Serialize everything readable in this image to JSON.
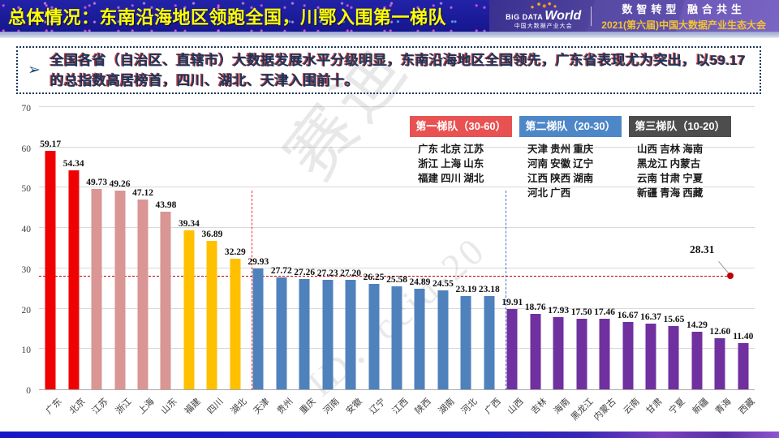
{
  "header": {
    "title": "总体情况：东南沿海地区领跑全国，川鄂入围第一梯队",
    "logo_big": "BiG DATA",
    "logo_world": "World",
    "logo_sub": "中国大数据产业大会",
    "slogan": "数智转型 融合共生",
    "conference": "2021(第六届)中国大数据产业生态大会"
  },
  "callout": {
    "bullet": "➢",
    "text": "全国各省（自治区、直辖市）大数据发展水平分级明显，东南沿海地区全国领先，广东省表现尤为突出，以59.17的总指数高居榜首，四川、湖北、天津入围前十。"
  },
  "legend": [
    {
      "label": "第一梯队（30-60）",
      "color": "#E95252",
      "text_color": "#ffffff",
      "provinces": [
        "广东 北京 江苏",
        "浙江 上海 山东",
        "福建 四川 湖北"
      ]
    },
    {
      "label": "第二梯队（20-30）",
      "color": "#4E87C8",
      "text_color": "#ffffff",
      "provinces": [
        "天津 贵州 重庆",
        "河南 安徽 辽宁",
        "江西 陕西 湖南",
        "河北 广西"
      ]
    },
    {
      "label": "第三梯队（10-20）",
      "color": "#4D4D4D",
      "text_color": "#ffffff",
      "provinces": [
        "山西 吉林 海南",
        "黑龙江 内蒙古",
        "云南 甘肃 宁夏",
        "新疆 青海 西藏"
      ]
    }
  ],
  "chart_data": {
    "type": "bar",
    "title": "",
    "xlabel": "",
    "ylabel": "",
    "ylim": [
      0,
      70
    ],
    "yticks": [
      0,
      10,
      20,
      30,
      40,
      50,
      60,
      70
    ],
    "grid": true,
    "categories": [
      "广东",
      "北京",
      "江苏",
      "浙江",
      "上海",
      "山东",
      "福建",
      "四川",
      "湖北",
      "天津",
      "贵州",
      "重庆",
      "河南",
      "安徽",
      "辽宁",
      "江西",
      "陕西",
      "湖南",
      "河北",
      "广西",
      "山西",
      "吉林",
      "海南",
      "黑龙江",
      "内蒙古",
      "云南",
      "甘肃",
      "宁夏",
      "新疆",
      "青海",
      "西藏"
    ],
    "values": [
      59.17,
      54.34,
      49.73,
      49.26,
      47.12,
      43.98,
      39.34,
      36.89,
      32.29,
      29.93,
      27.72,
      27.26,
      27.23,
      27.2,
      26.25,
      25.58,
      24.89,
      24.55,
      23.19,
      23.18,
      19.91,
      18.76,
      17.93,
      17.5,
      17.46,
      16.67,
      16.37,
      15.65,
      14.29,
      12.6,
      11.4
    ],
    "value_labels": [
      "59.17",
      "54.34",
      "49.73",
      "49.26",
      "47.12",
      "43.98",
      "39.34",
      "36.89",
      "32.29",
      "29.93",
      "27.72",
      "27.26",
      "27.23",
      "27.20",
      "26.25",
      "25.58",
      "24.89",
      "24.55",
      "23.19",
      "23.18",
      "19.91",
      "18.76",
      "17.93",
      "17.50",
      "17.46",
      "16.67",
      "16.37",
      "15.65",
      "14.29",
      "12.60",
      "11.40"
    ],
    "bar_colors": [
      "#EE0202",
      "#EE0202",
      "#D99694",
      "#D99694",
      "#D99694",
      "#D99694",
      "#FFC000",
      "#FFC000",
      "#FFC000",
      "#4F81BD",
      "#4F81BD",
      "#4F81BD",
      "#4F81BD",
      "#4F81BD",
      "#4F81BD",
      "#4F81BD",
      "#4F81BD",
      "#4F81BD",
      "#4F81BD",
      "#4F81BD",
      "#7030A0",
      "#7030A0",
      "#7030A0",
      "#7030A0",
      "#7030A0",
      "#7030A0",
      "#7030A0",
      "#7030A0",
      "#7030A0",
      "#7030A0",
      "#7030A0"
    ],
    "average_marker": {
      "value": 28.31,
      "label": "28.31",
      "line_color": "#C00000",
      "dot_color": "#C00000",
      "style": "dashed"
    },
    "dividers": [
      {
        "after_index": 8,
        "color": "#FF2A2A",
        "style": "dashed"
      },
      {
        "after_index": 19,
        "color": "#4472C4",
        "style": "dashed"
      }
    ],
    "legend_position": "top-right"
  },
  "watermarks": [
    {
      "text": "赛迪"
    },
    {
      "text": "ID：ccid-20"
    }
  ],
  "colors": {
    "accent_yellow": "#FFFF00",
    "callout_text": "#17365D",
    "grid": "#D9D9D9",
    "axis_text": "#404040"
  }
}
